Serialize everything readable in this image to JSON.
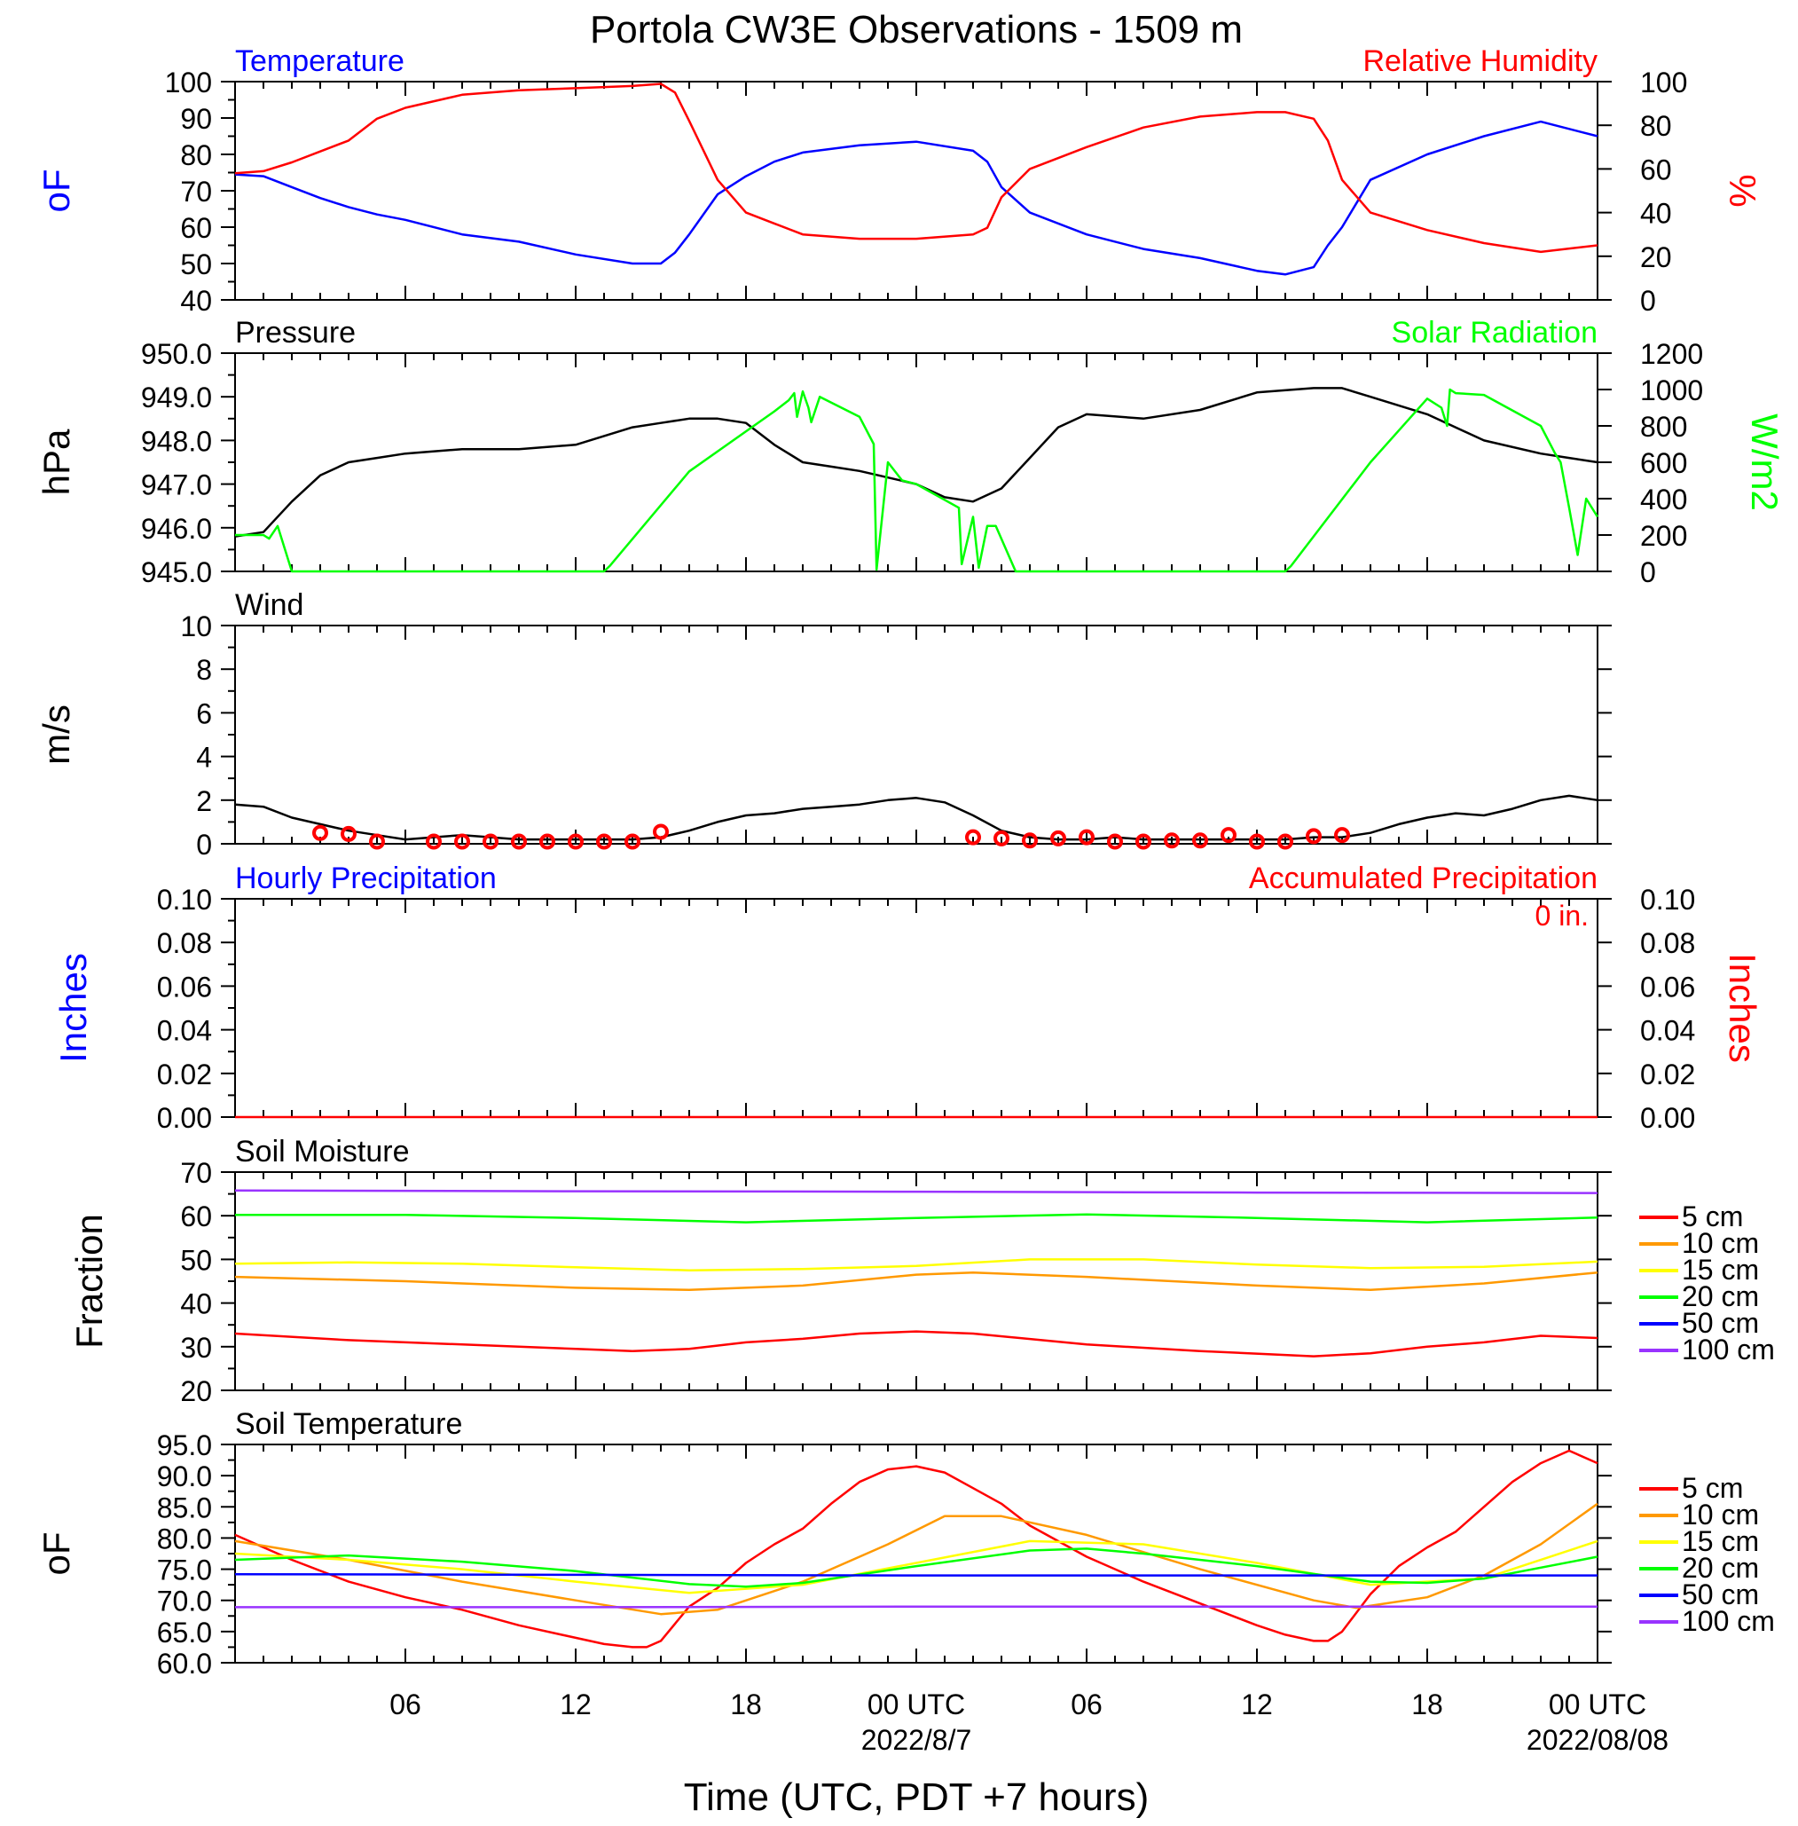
{
  "title": "Portola CW3E Observations - 1509 m",
  "x_axis": {
    "label": "Time (UTC, PDT +7 hours)",
    "range_hours": [
      0,
      48
    ],
    "tick_hours": [
      6,
      12,
      18,
      24,
      30,
      36,
      42,
      48
    ],
    "tick_labels": [
      "06",
      "12",
      "18",
      "00 UTC",
      "06",
      "12",
      "18",
      "00 UTC"
    ],
    "date_labels": [
      {
        "hour": 24,
        "text": "2022/8/7"
      },
      {
        "hour": 48,
        "text": "2022/08/08"
      }
    ]
  },
  "colors": {
    "blue": "#0000ff",
    "red": "#ff0000",
    "green": "#00ff00",
    "black": "#000000",
    "orange": "#ff9900",
    "yellow": "#ffff00",
    "purple": "#9933ff"
  },
  "chart_data": [
    {
      "type": "line",
      "name": "temperature-rh",
      "title_left": "Temperature",
      "title_right": "Relative Humidity",
      "ylabel_left": "oF",
      "ylabel_right": "%",
      "ylim_left": [
        40,
        100
      ],
      "ylim_right": [
        0,
        100
      ],
      "yticks_left": [
        "100",
        "90",
        "80",
        "70",
        "60",
        "50",
        "40"
      ],
      "yticks_right": [
        "100",
        "80",
        "60",
        "40",
        "20",
        "0"
      ],
      "series": [
        {
          "name": "Temperature",
          "axis": "left",
          "color": "#0000ff",
          "x": [
            0,
            1,
            2,
            3,
            4,
            5,
            6,
            8,
            10,
            12,
            14,
            15,
            15.5,
            16,
            17,
            18,
            19,
            20,
            22,
            24,
            26,
            26.5,
            27,
            28,
            30,
            32,
            34,
            36,
            37,
            38,
            38.5,
            39,
            40,
            42,
            44,
            46,
            48
          ],
          "y": [
            74.5,
            74,
            71,
            68,
            65.5,
            63.5,
            62,
            58,
            56,
            52.5,
            50,
            50,
            53,
            58,
            69,
            74,
            78,
            80.5,
            82.5,
            83.5,
            81,
            78,
            71,
            64,
            58,
            54,
            51.5,
            48,
            47,
            49,
            55,
            60,
            73,
            80,
            85,
            89,
            85
          ]
        },
        {
          "name": "Relative Humidity",
          "axis": "right",
          "color": "#ff0000",
          "x": [
            0,
            1,
            2,
            3,
            4,
            5,
            6,
            8,
            10,
            12,
            14,
            15,
            15.5,
            16,
            17,
            18,
            19,
            20,
            22,
            24,
            26,
            26.5,
            27,
            28,
            30,
            32,
            34,
            36,
            37,
            38,
            38.5,
            39,
            40,
            42,
            44,
            46,
            48
          ],
          "y": [
            58,
            59,
            63,
            68,
            73,
            83,
            88,
            94,
            96,
            97,
            98,
            99,
            95,
            82,
            55,
            40,
            35,
            30,
            28,
            28,
            30,
            33,
            47,
            60,
            70,
            79,
            84,
            86,
            86,
            83,
            73,
            55,
            40,
            32,
            26,
            22,
            25
          ]
        }
      ]
    },
    {
      "type": "line",
      "name": "pressure-solar",
      "title_left": "Pressure",
      "title_right": "Solar Radiation",
      "ylabel_left": "hPa",
      "ylabel_right": "W/m2",
      "ylim_left": [
        945,
        950
      ],
      "ylim_right": [
        0,
        1200
      ],
      "yticks_left": [
        "950.0",
        "949.0",
        "948.0",
        "947.0",
        "946.0",
        "945.0"
      ],
      "yticks_right": [
        "1200",
        "1000",
        "800",
        "600",
        "400",
        "200",
        "0"
      ],
      "series": [
        {
          "name": "Pressure",
          "axis": "left",
          "color": "#000000",
          "x": [
            0,
            1,
            2,
            3,
            4,
            5,
            6,
            8,
            10,
            12,
            14,
            15,
            16,
            17,
            18,
            19,
            20,
            21,
            22,
            24,
            25,
            26,
            27,
            28,
            29,
            30,
            32,
            34,
            36,
            38,
            39,
            40,
            42,
            44,
            46,
            47,
            48
          ],
          "y": [
            945.8,
            945.9,
            946.6,
            947.2,
            947.5,
            947.6,
            947.7,
            947.8,
            947.8,
            947.9,
            948.3,
            948.4,
            948.5,
            948.5,
            948.4,
            947.9,
            947.5,
            947.4,
            947.3,
            947.0,
            946.7,
            946.6,
            946.9,
            947.6,
            948.3,
            948.6,
            948.5,
            948.7,
            949.1,
            949.2,
            949.2,
            949.0,
            948.6,
            948.0,
            947.7,
            947.6,
            947.5
          ]
        },
        {
          "name": "Solar Radiation",
          "axis": "right",
          "color": "#00ff00",
          "x": [
            0,
            1,
            1.2,
            1.5,
            2,
            13,
            13.2,
            16,
            19,
            19.5,
            19.7,
            19.8,
            20,
            20.2,
            20.3,
            20.6,
            22,
            22.5,
            22.6,
            23,
            23.5,
            24,
            25.5,
            25.6,
            26,
            26.2,
            26.5,
            26.8,
            27.5,
            37,
            37.2,
            40,
            42,
            42.5,
            42.7,
            42.8,
            43,
            44,
            46,
            46.5,
            46.7,
            47,
            47.3,
            47.6,
            48
          ],
          "y": [
            200,
            200,
            180,
            250,
            0,
            0,
            30,
            550,
            880,
            940,
            980,
            850,
            990,
            900,
            820,
            960,
            850,
            700,
            10,
            600,
            500,
            480,
            350,
            40,
            300,
            20,
            250,
            250,
            0,
            0,
            30,
            600,
            950,
            900,
            800,
            1000,
            980,
            970,
            800,
            650,
            600,
            350,
            90,
            400,
            300
          ]
        }
      ]
    },
    {
      "type": "line",
      "name": "wind",
      "title_left": "Wind",
      "ylabel_left": "m/s",
      "ylim_left": [
        0,
        10
      ],
      "yticks_left": [
        "10",
        "8",
        "6",
        "4",
        "2",
        "0"
      ],
      "series": [
        {
          "name": "Wind",
          "axis": "left",
          "color": "#000000",
          "x": [
            0,
            1,
            2,
            3,
            4,
            5,
            6,
            7,
            8,
            9,
            10,
            11,
            12,
            13,
            14,
            15,
            16,
            17,
            18,
            19,
            20,
            21,
            22,
            23,
            24,
            25,
            26,
            27,
            28,
            29,
            30,
            31,
            32,
            33,
            34,
            35,
            36,
            37,
            38,
            39,
            40,
            41,
            42,
            43,
            44,
            45,
            46,
            47,
            48
          ],
          "y": [
            1.8,
            1.7,
            1.2,
            0.9,
            0.6,
            0.4,
            0.2,
            0.3,
            0.4,
            0.3,
            0.2,
            0.2,
            0.2,
            0.2,
            0.2,
            0.3,
            0.6,
            1.0,
            1.3,
            1.4,
            1.6,
            1.7,
            1.8,
            2.0,
            2.1,
            1.9,
            1.3,
            0.6,
            0.3,
            0.2,
            0.2,
            0.3,
            0.2,
            0.2,
            0.2,
            0.2,
            0.2,
            0.2,
            0.3,
            0.3,
            0.5,
            0.9,
            1.2,
            1.4,
            1.3,
            1.6,
            2.0,
            2.2,
            2.0
          ]
        },
        {
          "name": "Calm",
          "axis": "left",
          "color": "#ff0000",
          "marker": "circle",
          "x": [
            3,
            4,
            5,
            7,
            8,
            9,
            10,
            11,
            12,
            13,
            14,
            15,
            26,
            27,
            28,
            29,
            30,
            31,
            32,
            33,
            34,
            35,
            36,
            37,
            38,
            39
          ],
          "y": [
            0.5,
            0.45,
            0.1,
            0.1,
            0.1,
            0.1,
            0.1,
            0.1,
            0.1,
            0.1,
            0.1,
            0.55,
            0.3,
            0.25,
            0.15,
            0.25,
            0.3,
            0.1,
            0.1,
            0.15,
            0.15,
            0.4,
            0.1,
            0.1,
            0.35,
            0.4
          ]
        }
      ]
    },
    {
      "type": "line",
      "name": "precipitation",
      "title_left": "Hourly Precipitation",
      "title_right": "Accumulated Precipitation",
      "annotation": "0 in.",
      "ylabel_left": "Inches",
      "ylabel_right": "Inches",
      "ylim_left": [
        0,
        0.1
      ],
      "ylim_right": [
        0,
        0.1
      ],
      "yticks_left": [
        "0.10",
        "0.08",
        "0.06",
        "0.04",
        "0.02",
        "0.00"
      ],
      "yticks_right": [
        "0.10",
        "0.08",
        "0.06",
        "0.04",
        "0.02",
        "0.00"
      ],
      "series": [
        {
          "name": "Accumulated Precipitation",
          "axis": "left",
          "color": "#ff0000",
          "x": [
            0,
            48
          ],
          "y": [
            0,
            0
          ]
        }
      ]
    },
    {
      "type": "line",
      "name": "soil-moisture",
      "title_left": "Soil Moisture",
      "ylabel_left": "Fraction",
      "ylim_left": [
        20,
        70
      ],
      "yticks_left": [
        "70",
        "60",
        "50",
        "40",
        "30",
        "20"
      ],
      "legend": [
        "5 cm",
        "10 cm",
        "15 cm",
        "20 cm",
        "50 cm",
        "100 cm"
      ],
      "series": [
        {
          "name": "5 cm",
          "axis": "left",
          "color": "#ff0000",
          "x": [
            0,
            4,
            8,
            12,
            14,
            16,
            18,
            20,
            22,
            24,
            26,
            30,
            34,
            38,
            40,
            42,
            44,
            46,
            48
          ],
          "y": [
            33,
            31.5,
            30.5,
            29.5,
            29,
            29.5,
            31,
            31.8,
            33,
            33.5,
            33,
            30.5,
            29,
            27.8,
            28.5,
            30,
            31,
            32.5,
            32
          ]
        },
        {
          "name": "10 cm",
          "axis": "left",
          "color": "#ff9900",
          "x": [
            0,
            6,
            12,
            16,
            20,
            24,
            26,
            30,
            36,
            40,
            44,
            48
          ],
          "y": [
            46,
            45,
            43.5,
            43,
            44,
            46.5,
            47,
            46,
            44,
            43,
            44.5,
            47
          ]
        },
        {
          "name": "15 cm",
          "axis": "left",
          "color": "#ffff00",
          "x": [
            0,
            4,
            8,
            12,
            16,
            20,
            24,
            28,
            32,
            36,
            40,
            44,
            48
          ],
          "y": [
            49,
            49.3,
            49,
            48.2,
            47.5,
            47.8,
            48.5,
            50,
            50,
            48.8,
            48,
            48.3,
            49.5
          ]
        },
        {
          "name": "20 cm",
          "axis": "left",
          "color": "#00ff00",
          "x": [
            0,
            6,
            12,
            18,
            24,
            30,
            36,
            42,
            48
          ],
          "y": [
            60.2,
            60.2,
            59.5,
            58.5,
            59.5,
            60.3,
            59.5,
            58.5,
            59.6
          ]
        },
        {
          "name": "100 cm",
          "axis": "left",
          "color": "#9933ff",
          "x": [
            0,
            12,
            24,
            36,
            48
          ],
          "y": [
            65.8,
            65.6,
            65.5,
            65.3,
            65.2
          ]
        }
      ]
    },
    {
      "type": "line",
      "name": "soil-temperature",
      "title_left": "Soil Temperature",
      "ylabel_left": "oF",
      "ylim_left": [
        60,
        95
      ],
      "yticks_left": [
        "95.0",
        "90.0",
        "85.0",
        "80.0",
        "75.0",
        "70.0",
        "65.0",
        "60.0"
      ],
      "legend": [
        "5 cm",
        "10 cm",
        "15 cm",
        "20 cm",
        "50 cm",
        "100 cm"
      ],
      "series": [
        {
          "name": "5 cm",
          "axis": "left",
          "color": "#ff0000",
          "x": [
            0,
            2,
            4,
            6,
            8,
            10,
            12,
            13,
            14,
            14.5,
            15,
            16,
            17,
            18,
            19,
            20,
            21,
            22,
            23,
            24,
            25,
            26,
            27,
            28,
            30,
            32,
            34,
            36,
            37,
            38,
            38.5,
            39,
            40,
            41,
            42,
            43,
            44,
            45,
            46,
            47,
            48
          ],
          "y": [
            80.5,
            76.5,
            73,
            70.5,
            68.5,
            66,
            64,
            63,
            62.5,
            62.5,
            63.5,
            69,
            72,
            76,
            79,
            81.5,
            85.5,
            89,
            91,
            91.5,
            90.5,
            88,
            85.5,
            82,
            77,
            73,
            69.5,
            66,
            64.5,
            63.5,
            63.5,
            65,
            71,
            75.5,
            78.5,
            81,
            85,
            89,
            92,
            94,
            92
          ]
        },
        {
          "name": "10 cm",
          "axis": "left",
          "color": "#ff9900",
          "x": [
            0,
            4,
            8,
            12,
            15,
            17,
            20,
            23,
            25,
            27,
            30,
            34,
            38,
            39.5,
            42,
            44,
            46,
            48
          ],
          "y": [
            79.5,
            76.5,
            73,
            70,
            67.8,
            68.5,
            73,
            79,
            83.5,
            83.5,
            80.5,
            75,
            70,
            68.8,
            70.5,
            74,
            79,
            85.5
          ]
        },
        {
          "name": "15 cm",
          "axis": "left",
          "color": "#ffff00",
          "x": [
            0,
            4,
            8,
            12,
            16,
            20,
            24,
            28,
            32,
            36,
            40,
            44,
            48
          ],
          "y": [
            77.5,
            76.5,
            75,
            73,
            71.2,
            72.5,
            76,
            79.5,
            79,
            76,
            72.5,
            73.5,
            79.5
          ]
        },
        {
          "name": "20 cm",
          "axis": "left",
          "color": "#00ff00",
          "x": [
            0,
            4,
            8,
            12,
            16,
            18,
            20,
            24,
            28,
            30,
            32,
            36,
            40,
            42,
            44,
            48
          ],
          "y": [
            76.5,
            77.2,
            76.2,
            74.7,
            72.6,
            72.2,
            72.8,
            75.5,
            78,
            78.3,
            77.5,
            75.5,
            73,
            72.8,
            73.5,
            77
          ]
        },
        {
          "name": "50 cm",
          "axis": "left",
          "color": "#0000ff",
          "x": [
            0,
            12,
            24,
            36,
            48
          ],
          "y": [
            74.2,
            74.1,
            74.0,
            74.0,
            74.0
          ]
        },
        {
          "name": "100 cm",
          "axis": "left",
          "color": "#9933ff",
          "x": [
            0,
            12,
            24,
            36,
            48
          ],
          "y": [
            68.9,
            68.9,
            69.0,
            69.0,
            69.0
          ]
        }
      ]
    }
  ]
}
